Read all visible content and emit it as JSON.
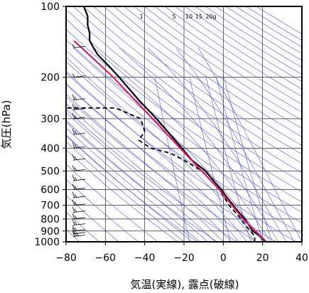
{
  "chart_data": {
    "type": "line",
    "subtype": "emagram",
    "xlabel": "気温(実線), 露点(破線)",
    "ylabel": "気圧(hPa)",
    "xlim": [
      -80,
      40
    ],
    "ylim": [
      1000,
      100
    ],
    "y_scale": "log",
    "x_ticks": [
      -80,
      -60,
      -40,
      -20,
      0,
      20,
      40
    ],
    "y_ticks": [
      100,
      200,
      300,
      400,
      500,
      600,
      700,
      800,
      900,
      1000
    ],
    "mixing_ratio_labels": [
      "1",
      "5",
      "10",
      "15",
      "20g"
    ],
    "series": [
      {
        "style": "solid",
        "color": "#000000",
        "points": [
          {
            "p": 1000,
            "t": 22
          },
          {
            "p": 975,
            "t": 20
          },
          {
            "p": 950,
            "t": 19
          },
          {
            "p": 925,
            "t": 17
          },
          {
            "p": 900,
            "t": 15
          },
          {
            "p": 850,
            "t": 13
          },
          {
            "p": 800,
            "t": 11
          },
          {
            "p": 750,
            "t": 8
          },
          {
            "p": 700,
            "t": 5
          },
          {
            "p": 650,
            "t": 2
          },
          {
            "p": 600,
            "t": -1
          },
          {
            "p": 550,
            "t": -5
          },
          {
            "p": 500,
            "t": -9
          },
          {
            "p": 450,
            "t": -16
          },
          {
            "p": 400,
            "t": -21
          },
          {
            "p": 350,
            "t": -27
          },
          {
            "p": 300,
            "t": -34
          },
          {
            "p": 250,
            "t": -43
          },
          {
            "p": 200,
            "t": -53
          },
          {
            "p": 180,
            "t": -58
          },
          {
            "p": 160,
            "t": -64
          },
          {
            "p": 150,
            "t": -66
          },
          {
            "p": 140,
            "t": -68
          },
          {
            "p": 130,
            "t": -68
          },
          {
            "p": 120,
            "t": -69
          },
          {
            "p": 110,
            "t": -69
          },
          {
            "p": 100,
            "t": -71
          }
        ]
      },
      {
        "style": "dashed",
        "color": "#000000",
        "points": [
          {
            "p": 1000,
            "t": 16
          },
          {
            "p": 950,
            "t": 16
          },
          {
            "p": 900,
            "t": 14
          },
          {
            "p": 850,
            "t": 11
          },
          {
            "p": 800,
            "t": 9
          },
          {
            "p": 700,
            "t": 3
          },
          {
            "p": 600,
            "t": -2
          },
          {
            "p": 500,
            "t": -11
          },
          {
            "p": 450,
            "t": -20
          },
          {
            "p": 420,
            "t": -27
          },
          {
            "p": 400,
            "t": -37
          },
          {
            "p": 370,
            "t": -43
          },
          {
            "p": 340,
            "t": -40
          },
          {
            "p": 300,
            "t": -42
          },
          {
            "p": 270,
            "t": -55
          },
          {
            "p": 270,
            "t": -80
          }
        ]
      },
      {
        "style": "solid",
        "color": "#d0206a",
        "points": [
          {
            "p": 1000,
            "t": 22
          },
          {
            "p": 800,
            "t": 10
          },
          {
            "p": 600,
            "t": -2
          },
          {
            "p": 400,
            "t": -22
          },
          {
            "p": 300,
            "t": -36
          },
          {
            "p": 200,
            "t": -56
          },
          {
            "p": 150,
            "t": -72
          },
          {
            "p": 140,
            "t": -76
          }
        ]
      }
    ],
    "wind_barbs": [
      {
        "p": 950,
        "speed_kt": 15
      },
      {
        "p": 925,
        "speed_kt": 10
      },
      {
        "p": 900,
        "speed_kt": 10
      },
      {
        "p": 850,
        "speed_kt": 10
      },
      {
        "p": 800,
        "speed_kt": 10
      },
      {
        "p": 750,
        "speed_kt": 10
      },
      {
        "p": 700,
        "speed_kt": 10
      },
      {
        "p": 650,
        "speed_kt": 10
      },
      {
        "p": 600,
        "speed_kt": 10
      },
      {
        "p": 550,
        "speed_kt": 10
      },
      {
        "p": 500,
        "speed_kt": 10
      },
      {
        "p": 450,
        "speed_kt": 10
      },
      {
        "p": 400,
        "speed_kt": 10
      },
      {
        "p": 350,
        "speed_kt": 10
      },
      {
        "p": 300,
        "speed_kt": 10
      },
      {
        "p": 275,
        "speed_kt": 10
      },
      {
        "p": 250,
        "speed_kt": 10
      },
      {
        "p": 200,
        "speed_kt": 5
      },
      {
        "p": 150,
        "speed_kt": 5
      }
    ],
    "grid": true,
    "colors": {
      "temperature": "#000000",
      "dewpoint": "#000000",
      "parcel": "#d0206a",
      "isotherm_grid": "#5050e0",
      "frame": "#000000"
    }
  }
}
